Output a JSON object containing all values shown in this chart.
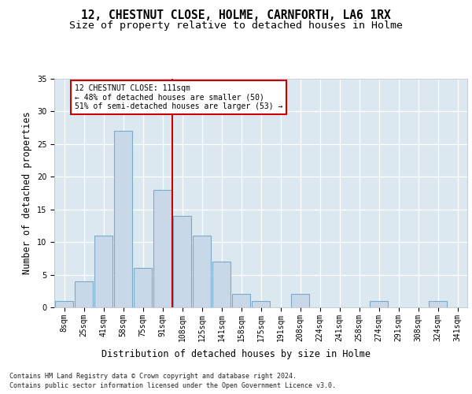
{
  "title": "12, CHESTNUT CLOSE, HOLME, CARNFORTH, LA6 1RX",
  "subtitle": "Size of property relative to detached houses in Holme",
  "xlabel": "Distribution of detached houses by size in Holme",
  "ylabel": "Number of detached properties",
  "bin_labels": [
    "8sqm",
    "25sqm",
    "41sqm",
    "58sqm",
    "75sqm",
    "91sqm",
    "108sqm",
    "125sqm",
    "141sqm",
    "158sqm",
    "175sqm",
    "191sqm",
    "208sqm",
    "224sqm",
    "241sqm",
    "258sqm",
    "274sqm",
    "291sqm",
    "308sqm",
    "324sqm",
    "341sqm"
  ],
  "bar_values": [
    1,
    4,
    11,
    27,
    6,
    18,
    14,
    11,
    7,
    2,
    1,
    0,
    2,
    0,
    0,
    0,
    1,
    0,
    0,
    1,
    0
  ],
  "bar_color": "#c8d8e8",
  "bar_edgecolor": "#7aaac8",
  "bar_linewidth": 0.8,
  "property_line_x": 5.5,
  "property_line_color": "#cc0000",
  "annotation_text": "12 CHESTNUT CLOSE: 111sqm\n← 48% of detached houses are smaller (50)\n51% of semi-detached houses are larger (53) →",
  "annotation_box_color": "#ffffff",
  "annotation_box_edgecolor": "#cc0000",
  "ylim": [
    0,
    35
  ],
  "yticks": [
    0,
    5,
    10,
    15,
    20,
    25,
    30,
    35
  ],
  "footer_line1": "Contains HM Land Registry data © Crown copyright and database right 2024.",
  "footer_line2": "Contains public sector information licensed under the Open Government Licence v3.0.",
  "background_color": "#dce8f0",
  "title_fontsize": 10.5,
  "subtitle_fontsize": 9.5,
  "tick_fontsize": 7,
  "ylabel_fontsize": 8.5,
  "xlabel_fontsize": 8.5,
  "footer_fontsize": 6
}
